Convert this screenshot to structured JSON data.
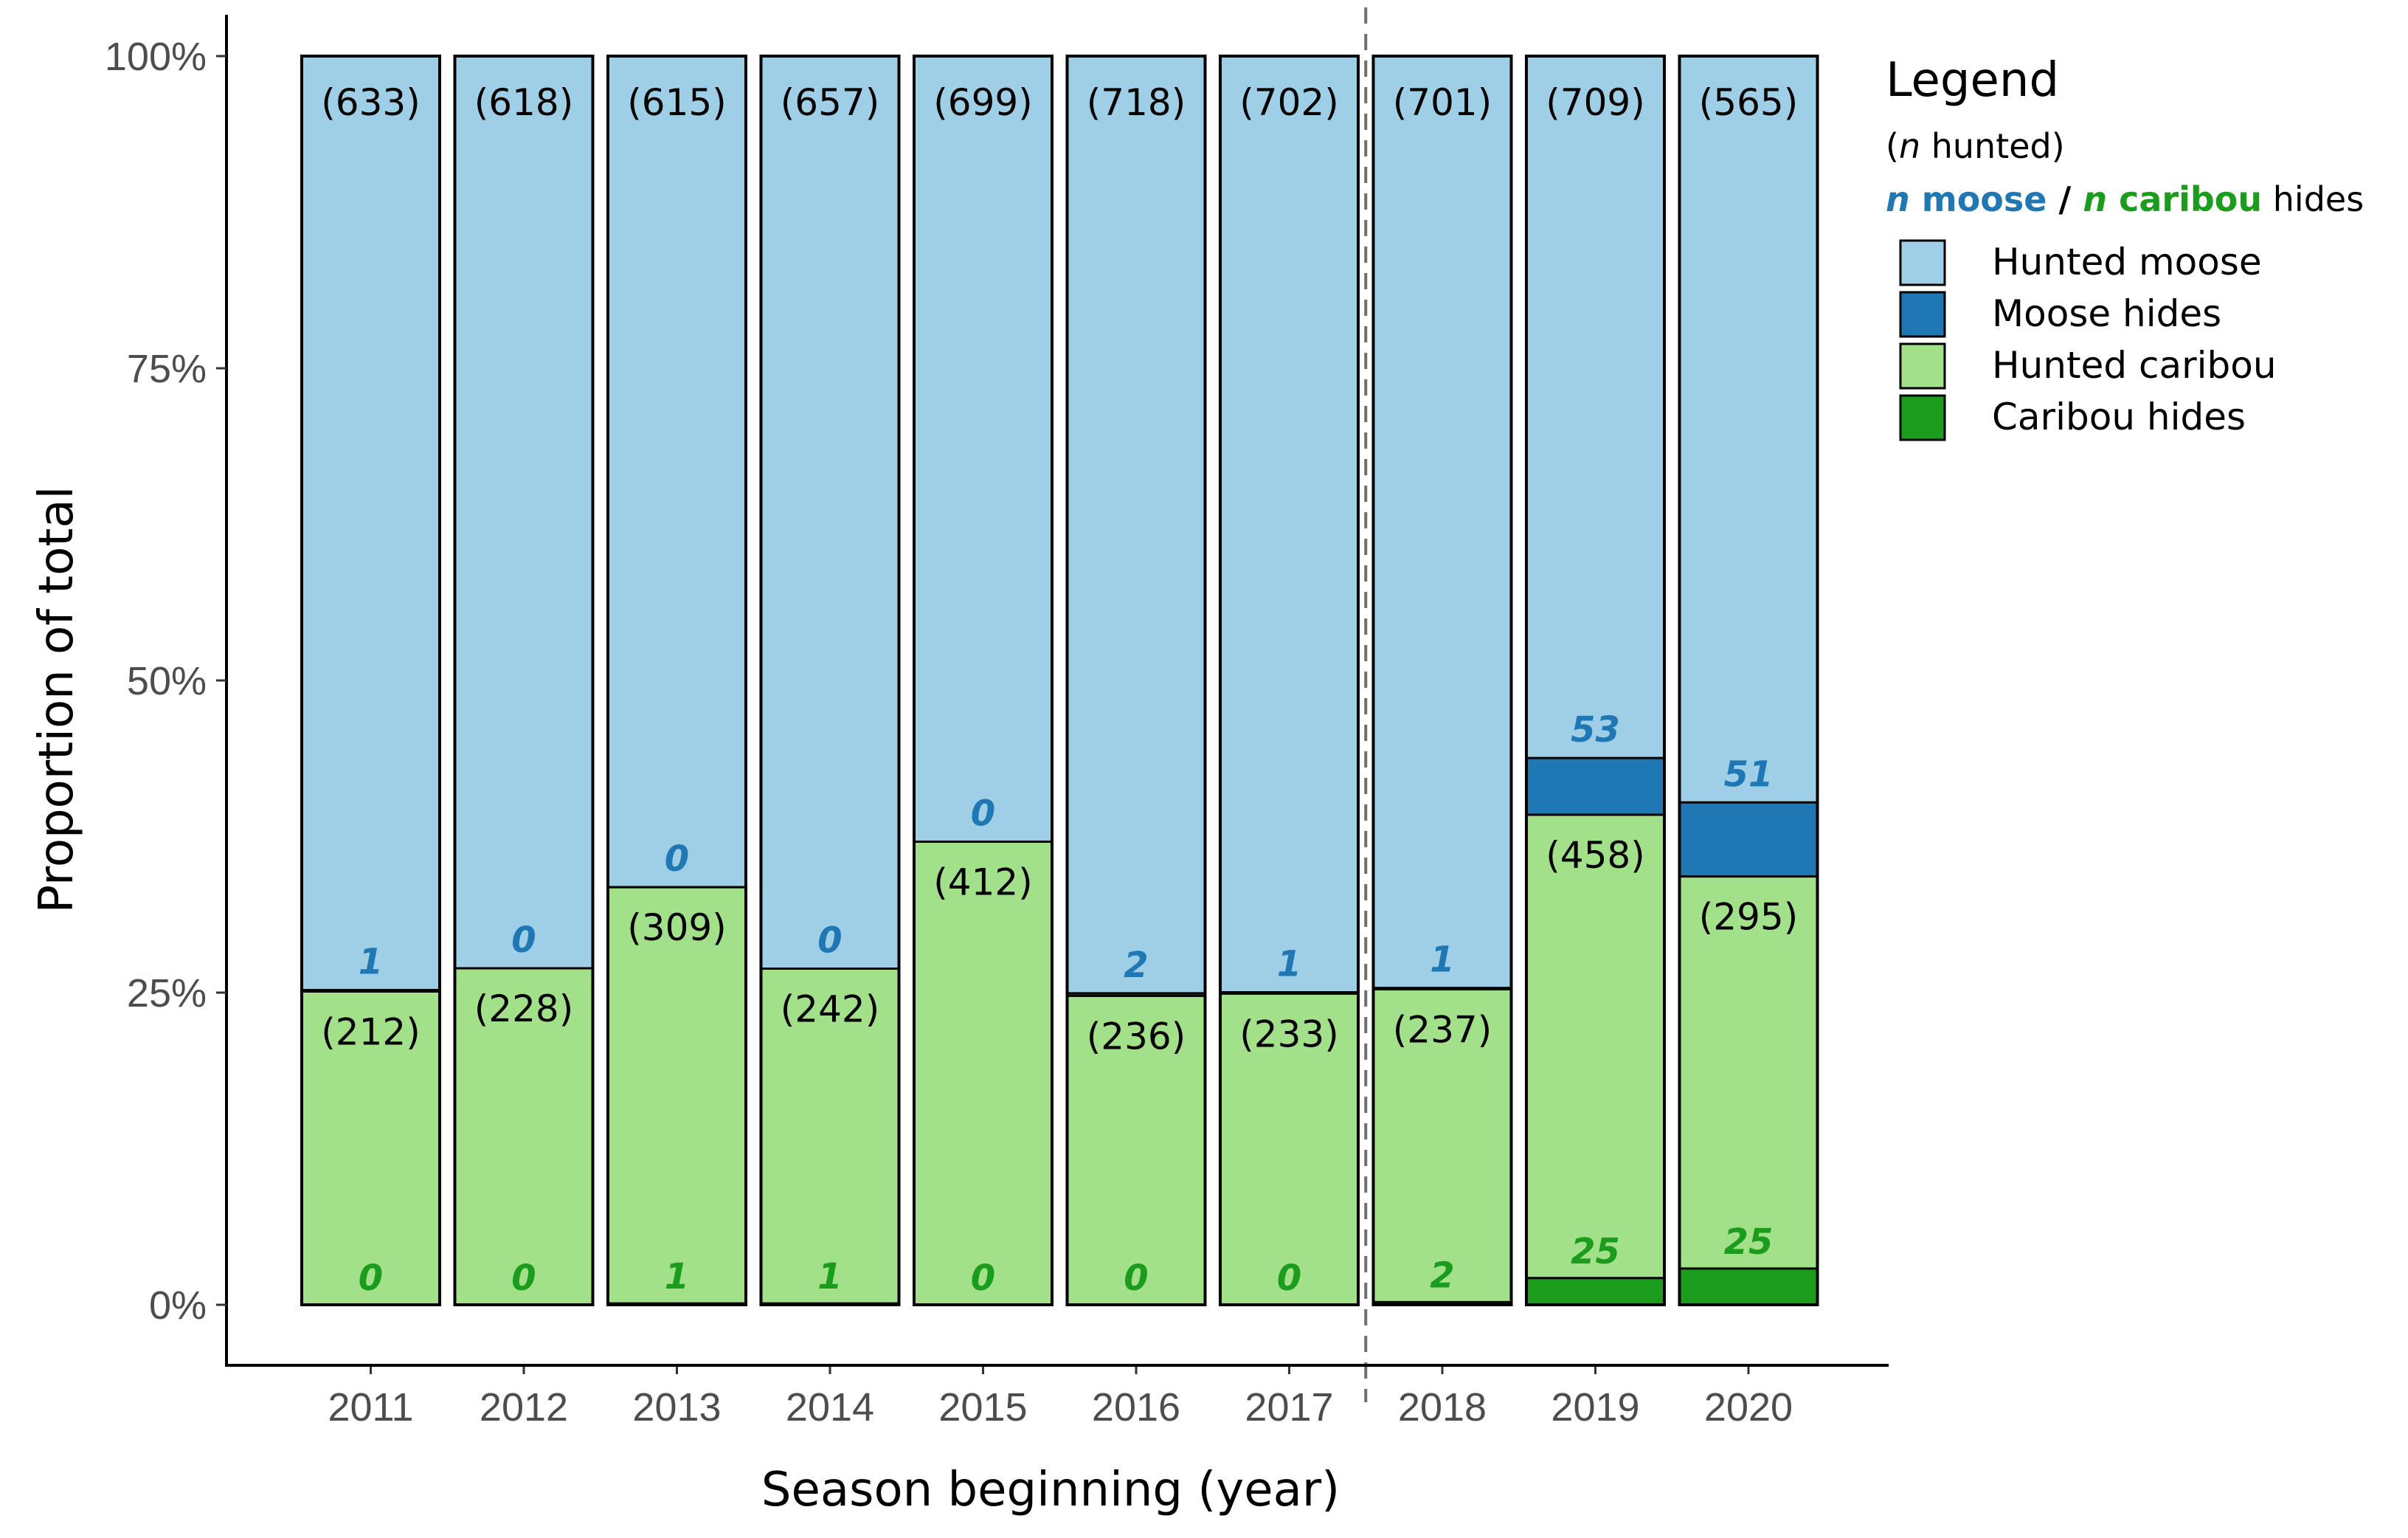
{
  "chart_data": {
    "type": "bar",
    "stacked": true,
    "normalized": true,
    "xlabel": "Season beginning (year)",
    "ylabel": "Proportion of total",
    "ylim": [
      0,
      1
    ],
    "yticks": [
      {
        "value": 0,
        "label": "0%"
      },
      {
        "value": 0.25,
        "label": "25%"
      },
      {
        "value": 0.5,
        "label": "50%"
      },
      {
        "value": 0.75,
        "label": "75%"
      },
      {
        "value": 1,
        "label": "100%"
      }
    ],
    "divider_after": "2017",
    "categories": [
      "2011",
      "2012",
      "2013",
      "2014",
      "2015",
      "2016",
      "2017",
      "2018",
      "2019",
      "2020"
    ],
    "series": [
      {
        "name": "Hunted moose",
        "color": "#9ecfe6",
        "values": [
          633,
          618,
          615,
          657,
          699,
          718,
          702,
          701,
          709,
          565
        ]
      },
      {
        "name": "Moose hides",
        "color": "#1f78b4",
        "values": [
          1,
          0,
          0,
          0,
          0,
          2,
          1,
          1,
          53,
          51
        ]
      },
      {
        "name": "Hunted caribou",
        "color": "#a3e08a",
        "values": [
          212,
          228,
          309,
          242,
          412,
          236,
          233,
          237,
          458,
          295
        ]
      },
      {
        "name": "Caribou hides",
        "color": "#1c9c1c",
        "values": [
          0,
          0,
          1,
          1,
          0,
          0,
          0,
          2,
          25,
          25
        ]
      }
    ],
    "label_colors": {
      "moose": "#1f78b4",
      "caribou": "#1c9c1c"
    },
    "legend": {
      "title": "Legend",
      "subtitle_italic": "n",
      "subtitle_rest": " hunted)",
      "subtitle_open": "(",
      "line2_n1": "n",
      "line2_moose": " moose",
      "line2_slash": " / ",
      "line2_n2": "n",
      "line2_caribou": " caribou",
      "line2_hides": " hides",
      "items": [
        "Hunted moose",
        "Moose hides",
        "Hunted caribou",
        "Caribou hides"
      ]
    }
  }
}
